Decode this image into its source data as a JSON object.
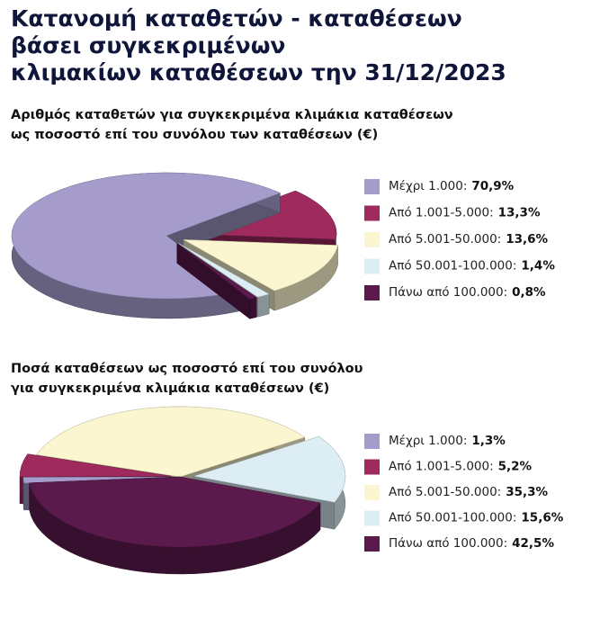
{
  "title": [
    "Κατανομή καταθετών - καταθέσεων",
    "βάσει συγκεκριμένων",
    "κλιμακίων καταθέσεων την 31/12/2023"
  ],
  "chart_data": [
    {
      "type": "pie3d",
      "title": [
        "Αριθμός καταθετών για συγκεκριμένα κλιμάκια καταθέσεων",
        "ως ποσοστό επί του συνόλου των καταθέσεων (€)"
      ],
      "categories": [
        "Μέχρι 1.000:",
        "Από 1.001-5.000:",
        "Από 5.001-50.000:",
        "Από 50.001-100.000:",
        "Πάνω από 100.000:"
      ],
      "values": [
        70.9,
        13.3,
        13.6,
        1.4,
        0.8
      ],
      "value_labels": [
        "70,9%",
        "13,3%",
        "13,6%",
        "1,4%",
        "0,8%"
      ],
      "colors": [
        "#a59ccc",
        "#9e2a5e",
        "#fbf6cf",
        "#dcedf3",
        "#5a1a4c"
      ]
    },
    {
      "type": "pie3d",
      "title": [
        "Ποσά καταθέσεων ως ποσοστό επί του συνόλου",
        "για συγκεκριμένα κλιμάκια καταθέσεων (€)"
      ],
      "categories": [
        "Μέχρι 1.000:",
        "Από 1.001-5.000:",
        "Από 5.001-50.000:",
        "Από 50.001-100.000:",
        "Πάνω από 100.000:"
      ],
      "values": [
        1.3,
        5.2,
        35.3,
        15.6,
        42.5
      ],
      "value_labels": [
        "1,3%",
        "5,2%",
        "35,3%",
        "15,6%",
        "42,5%"
      ],
      "colors": [
        "#a59ccc",
        "#9e2a5e",
        "#fbf6cf",
        "#dcedf3",
        "#5a1a4c"
      ]
    }
  ]
}
